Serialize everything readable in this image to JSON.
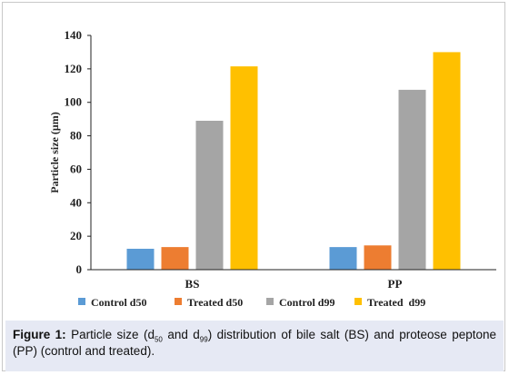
{
  "chart_data": {
    "type": "bar",
    "categories": [
      "BS",
      "PP"
    ],
    "series": [
      {
        "name": "Control d50",
        "color": "#5b9bd5",
        "values": [
          12.5,
          13.5
        ]
      },
      {
        "name": "Treated d50",
        "color": "#ed7d31",
        "values": [
          13.5,
          14.5
        ]
      },
      {
        "name": "Control d99",
        "color": "#a5a5a5",
        "values": [
          89,
          107.5
        ]
      },
      {
        "name": "Treated  d99",
        "color": "#ffc000",
        "values": [
          121.5,
          130
        ]
      }
    ],
    "ylabel": "Particle size (μm)",
    "ylim": [
      0,
      140
    ],
    "yticks": [
      0,
      20,
      40,
      60,
      80,
      100,
      120,
      140
    ],
    "grid": false,
    "legend_position": "bottom"
  },
  "caption": {
    "label": "Figure 1:",
    "part1": " Particle size (d",
    "sub1": "50",
    "part2": " and d",
    "sub2": "99",
    "part3": ") distribution of bile salt (BS) and proteose peptone (PP) (control and treated)."
  }
}
